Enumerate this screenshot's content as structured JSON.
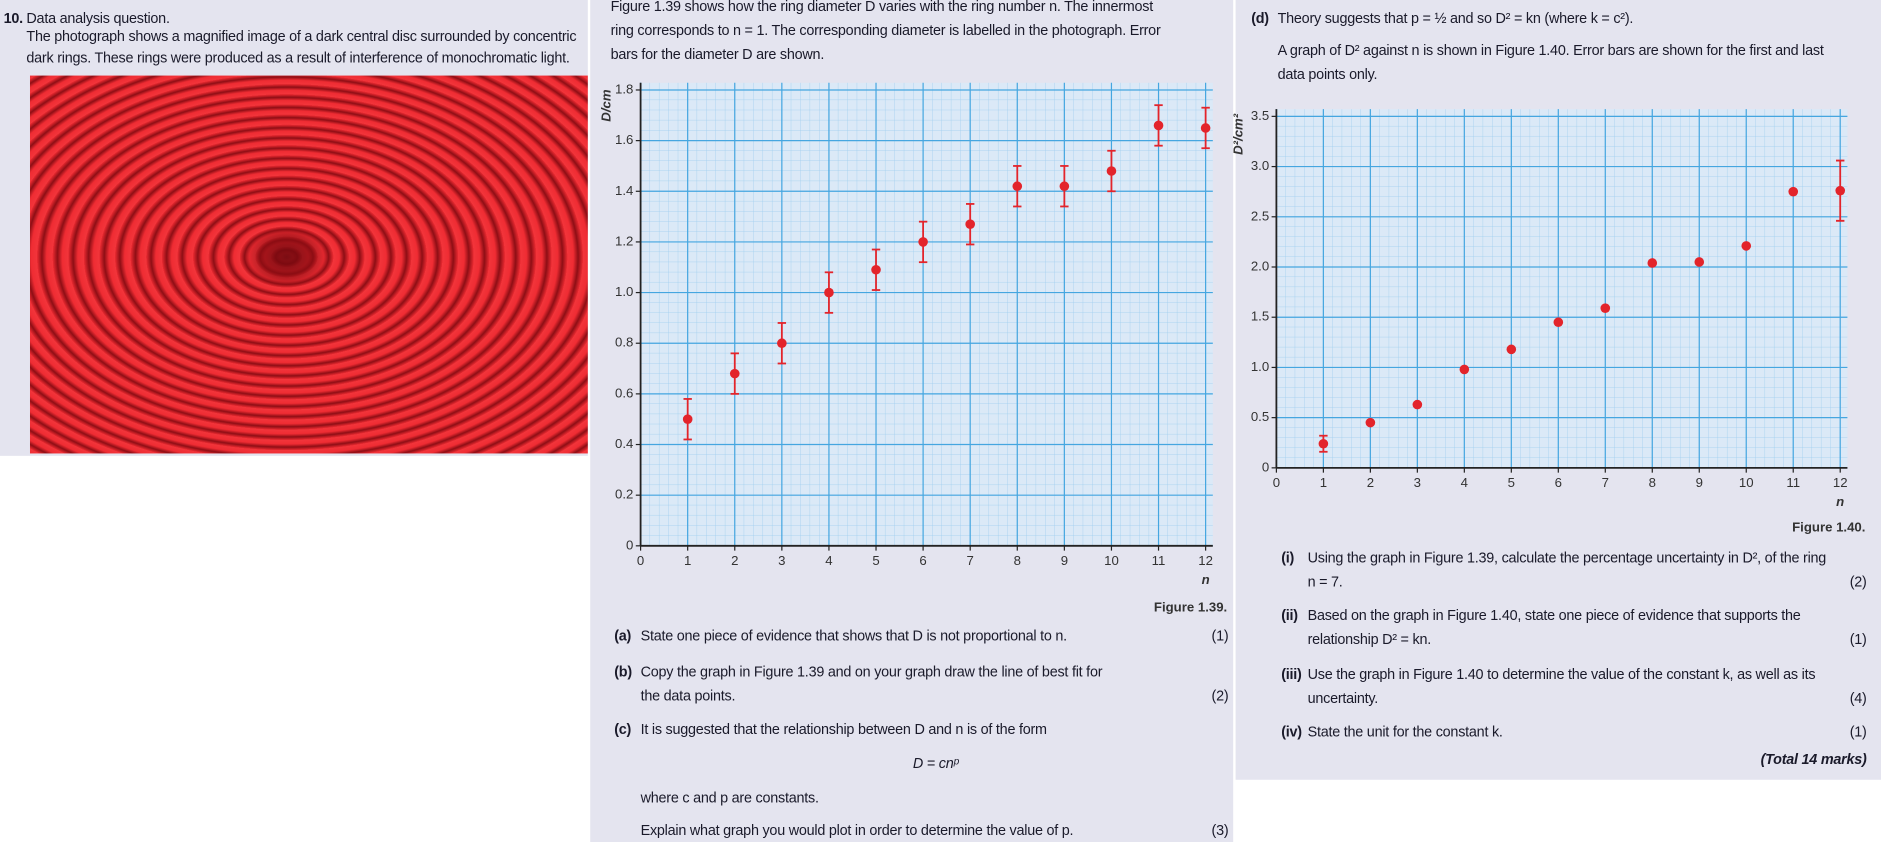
{
  "question": {
    "number": "10.",
    "heading": "Data analysis question.",
    "intro": "The photograph shows a magnified image of a dark central disc surrounded by concentric dark rings. These rings were produced as a result of interference of monochromatic light."
  },
  "figure_intro": "Figure 1.39 shows how the ring diameter D varies with the ring number n. The innermost ring corresponds to n = 1. The corresponding diameter is labelled in the photograph. Error bars for the diameter D are shown.",
  "chart_data": [
    {
      "type": "scatter",
      "caption": "Figure 1.39.",
      "x_label": "n",
      "y_label": "D/cm",
      "x": [
        1,
        2,
        3,
        4,
        5,
        6,
        7,
        8,
        9,
        10,
        11,
        12
      ],
      "values": [
        0.5,
        0.68,
        0.8,
        1.0,
        1.09,
        1.2,
        1.27,
        1.42,
        1.42,
        1.48,
        1.66,
        1.65
      ],
      "errors": [
        0.08,
        0.08,
        0.08,
        0.08,
        0.08,
        0.08,
        0.08,
        0.08,
        0.08,
        0.08,
        0.08,
        0.08
      ],
      "color": "#e3242b",
      "xlim": [
        0,
        12
      ],
      "ylim": [
        0,
        1.8
      ],
      "xticks": [
        0,
        1,
        2,
        3,
        4,
        5,
        6,
        7,
        8,
        9,
        10,
        11,
        12
      ],
      "yticks": [
        0,
        0.2,
        0.4,
        0.6,
        0.8,
        {
          "value": 1,
          "label": "1.0"
        },
        1.2,
        1.4,
        1.6,
        1.8
      ],
      "grid": true
    },
    {
      "type": "scatter",
      "caption": "Figure 1.40.",
      "x_label": "n",
      "y_label": "D²/cm²",
      "x": [
        1,
        2,
        3,
        4,
        5,
        6,
        7,
        8,
        9,
        10,
        11,
        12
      ],
      "values": [
        0.24,
        0.45,
        0.63,
        0.98,
        1.18,
        1.45,
        1.59,
        2.04,
        2.05,
        2.21,
        2.75,
        2.76
      ],
      "errors": [
        0.08,
        null,
        null,
        null,
        null,
        null,
        null,
        null,
        null,
        null,
        null,
        0.3
      ],
      "color": "#e3242b",
      "xlim": [
        0,
        12
      ],
      "ylim": [
        0,
        3.5
      ],
      "xticks": [
        0,
        1,
        2,
        3,
        4,
        5,
        6,
        7,
        8,
        9,
        10,
        11,
        12
      ],
      "yticks": [
        0,
        0.5,
        {
          "value": 1,
          "label": "1.0"
        },
        1.5,
        {
          "value": 2,
          "label": "2.0"
        },
        2.5,
        {
          "value": 3,
          "label": "3.0"
        },
        3.5
      ],
      "grid": true
    }
  ],
  "parts": [
    {
      "label": "(a)",
      "text": "State one piece of evidence that shows that D is not proportional to n.",
      "marks": "(1)"
    },
    {
      "label": "(b)",
      "text": "Copy the graph in Figure 1.39 and on your graph draw the line of best fit for the data points.",
      "marks": "(2)"
    },
    {
      "label": "(c)",
      "text": "It is suggested that the relationship between D and n is of the form",
      "equation": "D = cnᵖ",
      "where": "where c and p are constants.",
      "task": "Explain what graph you would plot in order to determine the value of p.",
      "marks": "(3)"
    }
  ],
  "part_d": {
    "label": "(d)",
    "text": "Theory suggests that p = ½ and so D² = kn (where k = c²).",
    "text2": "A graph of D² against n is shown in Figure 1.40. Error bars are shown for the first and last data points only."
  },
  "subparts": [
    {
      "label": "(i)",
      "text": "Using the graph in Figure 1.39, calculate the percentage uncertainty in D², of the ring n = 7.",
      "marks": "(2)"
    },
    {
      "label": "(ii)",
      "text": "Based on the graph in Figure 1.40, state one piece of evidence that supports the relationship D² = kn.",
      "marks": "(1)"
    },
    {
      "label": "(iii)",
      "text": "Use the graph in Figure 1.40 to determine the value of the constant k, as well as its uncertainty.",
      "marks": "(4)"
    },
    {
      "label": "(iv)",
      "text": "State the unit for the constant k.",
      "marks": "(1)"
    }
  ],
  "total": "(Total 14 marks)"
}
